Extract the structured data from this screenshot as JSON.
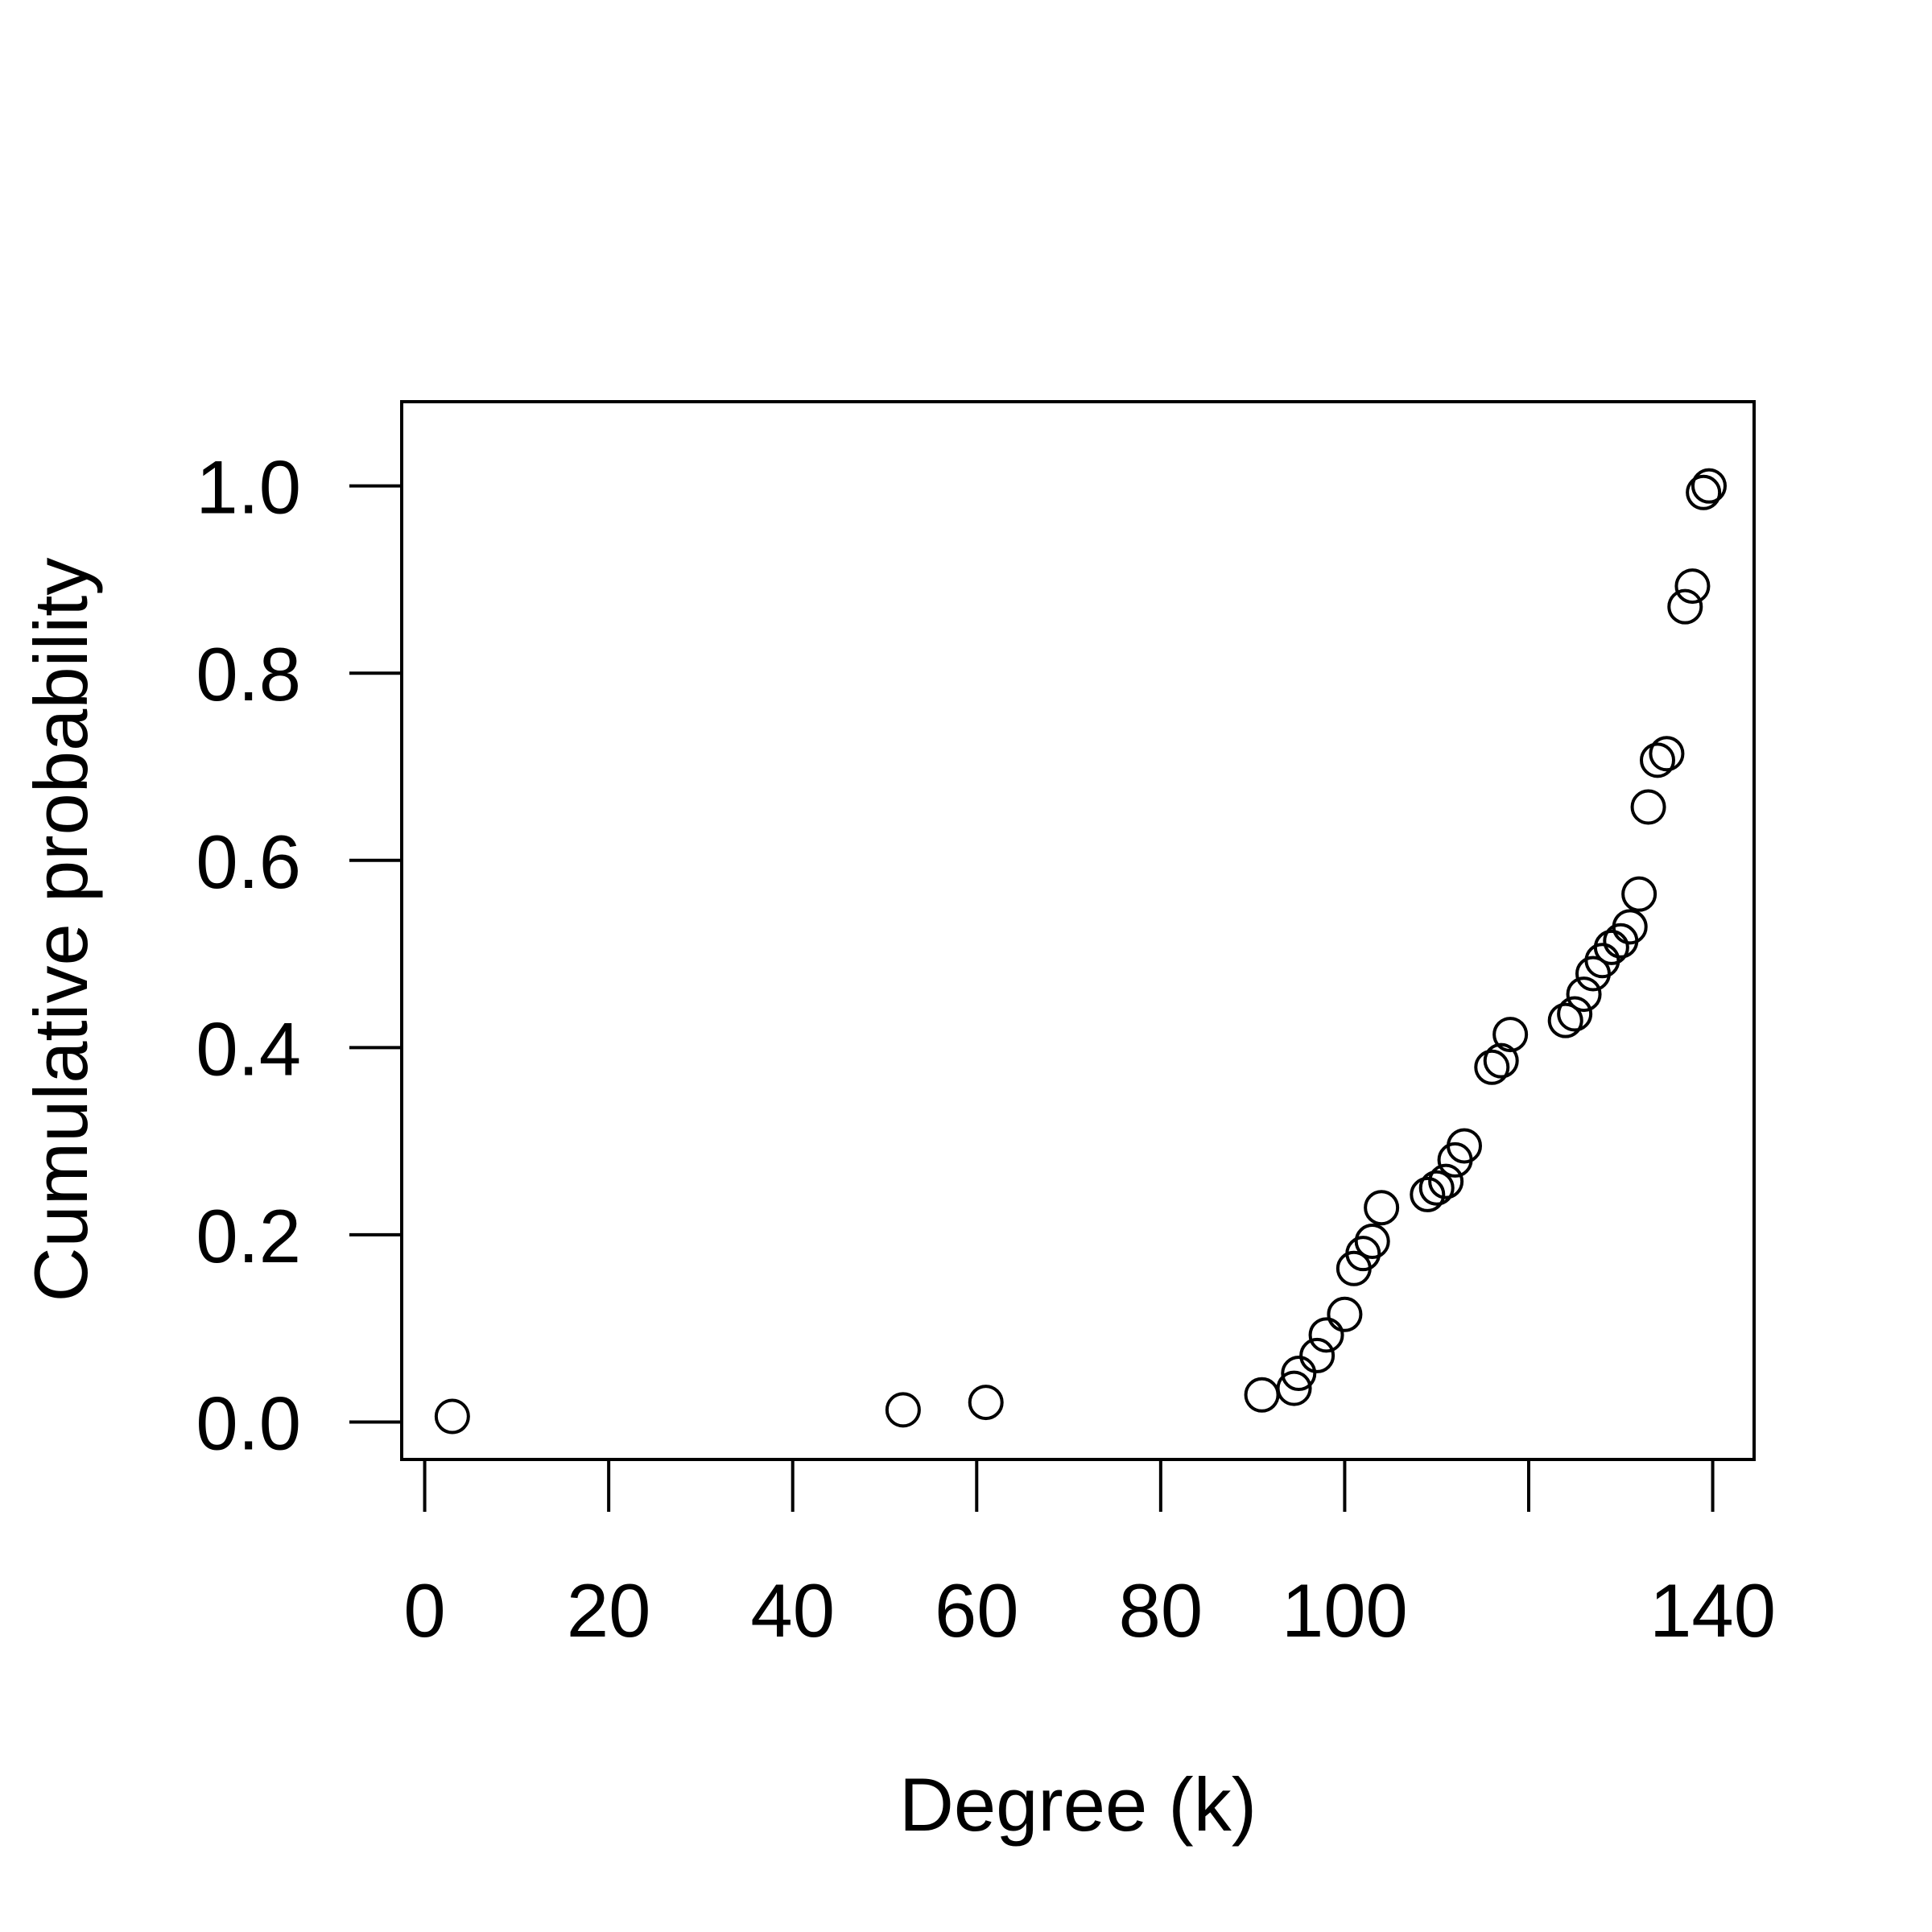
{
  "chart_data": {
    "type": "scatter",
    "title": "",
    "xlabel": "Degree (k)",
    "ylabel": "Cumulative probability",
    "xlim": [
      -2.5,
      144.5
    ],
    "ylim": [
      -0.04,
      1.09
    ],
    "x_ticks": [
      0,
      20,
      40,
      60,
      80,
      100,
      120,
      140
    ],
    "x_tick_labels": [
      "0",
      "20",
      "40",
      "60",
      "80",
      "100",
      "",
      "140"
    ],
    "y_ticks": [
      0.0,
      0.2,
      0.4,
      0.6,
      0.8,
      1.0
    ],
    "y_tick_labels": [
      "0.0",
      "0.2",
      "0.4",
      "0.6",
      "0.8",
      "1.0"
    ],
    "grid": false,
    "marker": "open-circle",
    "color": "#000000",
    "points": [
      {
        "x": 3,
        "y": 0.006
      },
      {
        "x": 52,
        "y": 0.013
      },
      {
        "x": 61,
        "y": 0.021
      },
      {
        "x": 91,
        "y": 0.029
      },
      {
        "x": 94.5,
        "y": 0.036
      },
      {
        "x": 95,
        "y": 0.052
      },
      {
        "x": 97,
        "y": 0.071
      },
      {
        "x": 98,
        "y": 0.093
      },
      {
        "x": 100,
        "y": 0.115
      },
      {
        "x": 101,
        "y": 0.164
      },
      {
        "x": 102,
        "y": 0.18
      },
      {
        "x": 103,
        "y": 0.193
      },
      {
        "x": 104,
        "y": 0.229
      },
      {
        "x": 109,
        "y": 0.243
      },
      {
        "x": 110,
        "y": 0.25
      },
      {
        "x": 111,
        "y": 0.257
      },
      {
        "x": 112,
        "y": 0.28
      },
      {
        "x": 113,
        "y": 0.295
      },
      {
        "x": 116,
        "y": 0.379
      },
      {
        "x": 117,
        "y": 0.386
      },
      {
        "x": 118,
        "y": 0.414
      },
      {
        "x": 124,
        "y": 0.429
      },
      {
        "x": 125,
        "y": 0.436
      },
      {
        "x": 126,
        "y": 0.457
      },
      {
        "x": 127,
        "y": 0.479
      },
      {
        "x": 128,
        "y": 0.493
      },
      {
        "x": 129,
        "y": 0.507
      },
      {
        "x": 130,
        "y": 0.514
      },
      {
        "x": 131,
        "y": 0.529
      },
      {
        "x": 132,
        "y": 0.564
      },
      {
        "x": 133,
        "y": 0.657
      },
      {
        "x": 134,
        "y": 0.707
      },
      {
        "x": 135,
        "y": 0.714
      },
      {
        "x": 137,
        "y": 0.871
      },
      {
        "x": 137.8,
        "y": 0.893
      },
      {
        "x": 139,
        "y": 0.993
      },
      {
        "x": 139.6,
        "y": 1.0
      }
    ]
  }
}
